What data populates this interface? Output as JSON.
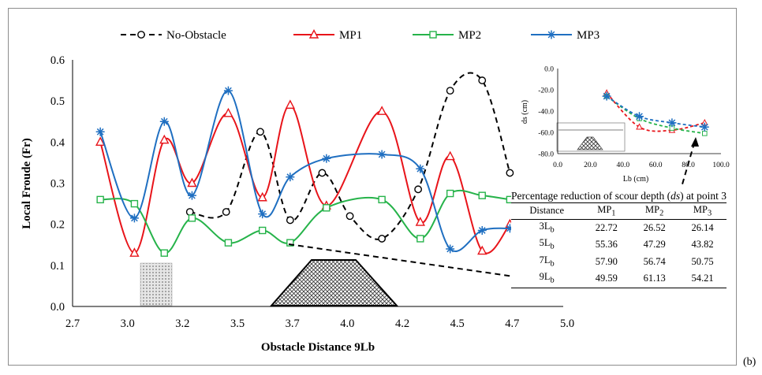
{
  "panel_label": "(b)",
  "colors": {
    "no_obstacle": "#000000",
    "mp1": "#e8141a",
    "mp2": "#26b34a",
    "mp3": "#1f6fc1"
  },
  "chart_data": [
    {
      "type": "line",
      "xlabel": "Obstacle Distance 9Lb",
      "ylabel": "Local Froude (Fr)",
      "xlim": [
        2.7,
        5.0
      ],
      "ylim": [
        0,
        0.6
      ],
      "xticks": [
        "2.7",
        "3.0",
        "3.2",
        "3.5",
        "3.7",
        "4.0",
        "4.2",
        "4.5",
        "4.7",
        "5.0"
      ],
      "yticks": [
        "0.0",
        "0.1",
        "0.2",
        "0.3",
        "0.4",
        "0.5",
        "0.6"
      ],
      "grid": false,
      "legend_position": "top",
      "series": [
        {
          "name": "No-Obstacle",
          "style": "dashed",
          "marker": "circle",
          "color": "#000000",
          "x": [
            3.25,
            3.42,
            3.58,
            3.72,
            3.87,
            4.0,
            4.15,
            4.32,
            4.47,
            4.62,
            4.75
          ],
          "y": [
            0.23,
            0.23,
            0.425,
            0.21,
            0.325,
            0.22,
            0.165,
            0.285,
            0.525,
            0.55,
            0.325
          ]
        },
        {
          "name": "MP1",
          "style": "solid",
          "marker": "triangle",
          "color": "#e8141a",
          "x": [
            2.83,
            2.99,
            3.13,
            3.26,
            3.43,
            3.59,
            3.72,
            3.89,
            4.15,
            4.33,
            4.47,
            4.62,
            4.75
          ],
          "y": [
            0.4,
            0.13,
            0.405,
            0.3,
            0.47,
            0.265,
            0.49,
            0.245,
            0.475,
            0.205,
            0.365,
            0.135,
            0.2
          ]
        },
        {
          "name": "MP2",
          "style": "solid",
          "marker": "square",
          "color": "#26b34a",
          "x": [
            2.83,
            2.99,
            3.13,
            3.26,
            3.43,
            3.59,
            3.72,
            3.89,
            4.15,
            4.33,
            4.47,
            4.62,
            4.75
          ],
          "y": [
            0.26,
            0.25,
            0.13,
            0.215,
            0.155,
            0.185,
            0.155,
            0.24,
            0.26,
            0.165,
            0.275,
            0.27,
            0.26
          ]
        },
        {
          "name": "MP3",
          "style": "solid",
          "marker": "asterisk",
          "color": "#1f6fc1",
          "x": [
            2.83,
            2.99,
            3.13,
            3.26,
            3.43,
            3.59,
            3.72,
            3.89,
            4.15,
            4.33,
            4.47,
            4.62,
            4.75
          ],
          "y": [
            0.425,
            0.215,
            0.45,
            0.27,
            0.525,
            0.225,
            0.315,
            0.36,
            0.37,
            0.335,
            0.14,
            0.185,
            0.19
          ]
        }
      ]
    },
    {
      "type": "line",
      "xlabel": "Lb (cm)",
      "ylabel": "ds (cm)",
      "xlim": [
        0,
        100
      ],
      "ylim": [
        -80,
        0
      ],
      "xticks": [
        "0.0",
        "20.0",
        "40.0",
        "60.0",
        "80.0",
        "100.0"
      ],
      "yticks": [
        "0.0",
        "-20.0",
        "-40.0",
        "-60.0",
        "-80.0"
      ],
      "series": [
        {
          "name": "MP1",
          "x": [
            30,
            50,
            70,
            90
          ],
          "y": [
            -23,
            -55,
            -58,
            -51
          ],
          "color": "#e8141a"
        },
        {
          "name": "MP2",
          "x": [
            30,
            50,
            70,
            90
          ],
          "y": [
            -26,
            -47,
            -56,
            -61
          ],
          "color": "#26b34a"
        },
        {
          "name": "MP3",
          "x": [
            30,
            50,
            70,
            90
          ],
          "y": [
            -26,
            -45,
            -51,
            -55
          ],
          "color": "#1f6fc1"
        }
      ]
    },
    {
      "type": "table",
      "title": "Percentage reduction of scour depth (ds) at point 3",
      "title_parts": [
        "Percentage reduction of scour depth (",
        "ds",
        ") at point 3"
      ],
      "header": [
        "Distance",
        "MP",
        "MP",
        "MP"
      ],
      "header_sub": [
        "",
        "1",
        "2",
        "3"
      ],
      "rows": [
        {
          "dist": "3L",
          "sub": "b",
          "mp1": "22.72",
          "mp2": "26.52",
          "mp3": "26.14"
        },
        {
          "dist": "5L",
          "sub": "b",
          "mp1": "55.36",
          "mp2": "47.29",
          "mp3": "43.82"
        },
        {
          "dist": "7L",
          "sub": "b",
          "mp1": "57.90",
          "mp2": "56.74",
          "mp3": "50.75"
        },
        {
          "dist": "9L",
          "sub": "b",
          "mp1": "49.59",
          "mp2": "61.13",
          "mp3": "54.21"
        }
      ]
    }
  ]
}
